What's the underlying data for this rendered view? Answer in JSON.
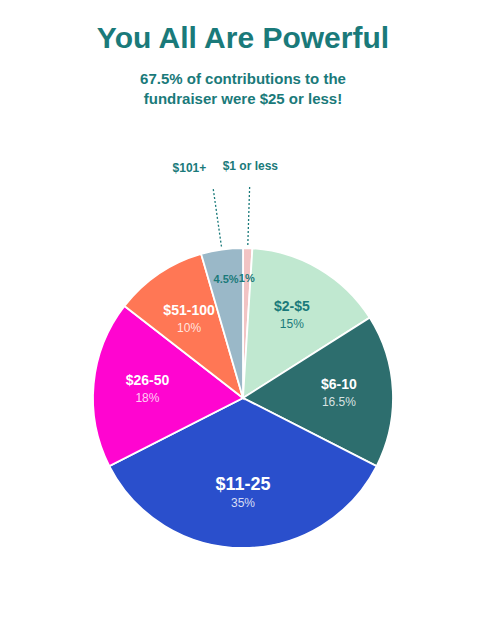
{
  "chart_data": {
    "type": "pie",
    "title": "You All Are Powerful",
    "subtitle": "67.5% of contributions to the\nfundraiser were $25 or less!",
    "categories": [
      "$1 or less",
      "$2-$5",
      "$6-10",
      "$11-25",
      "$26-50",
      "$51-100",
      "$101+"
    ],
    "values": [
      1,
      15,
      16.5,
      35,
      18,
      10,
      4.5
    ],
    "value_labels": [
      "1%",
      "15%",
      "16.5%",
      "35%",
      "18%",
      "10%",
      "4.5%"
    ],
    "colors": [
      "#f2c4c4",
      "#c0e8d0",
      "#2d6e6e",
      "#2a4fcc",
      "#ff05d0",
      "#ff7755",
      "#9ab8c8"
    ],
    "data_labels": true
  }
}
